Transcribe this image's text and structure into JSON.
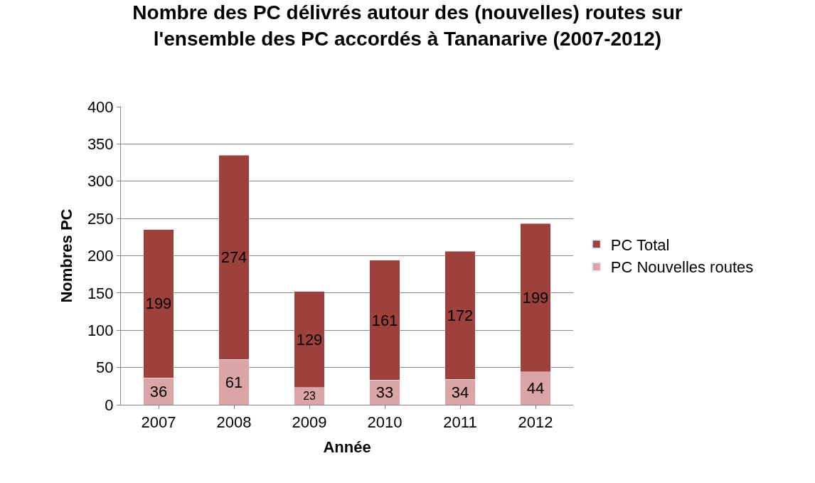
{
  "chart_data": {
    "type": "bar",
    "title": "Nombre des PC délivrés autour des (nouvelles) routes sur\nl'ensemble des PC accordés à Tananarive (2007-2012)",
    "xlabel": "Année",
    "ylabel": "Nombres PC",
    "categories": [
      "2007",
      "2008",
      "2009",
      "2010",
      "2011",
      "2012"
    ],
    "stacked": true,
    "data_labels": true,
    "series": [
      {
        "name": "PC Nouvelles routes",
        "color": "#dba5a5",
        "values": [
          36,
          61,
          23,
          33,
          34,
          44
        ]
      },
      {
        "name": "PC Total",
        "color": "#9e413d",
        "values": [
          199,
          274,
          129,
          161,
          172,
          199
        ]
      }
    ],
    "ylim": [
      0,
      400
    ],
    "yticks": [
      0,
      50,
      100,
      150,
      200,
      250,
      300,
      350,
      400
    ],
    "grid": "y",
    "legend": "right"
  }
}
